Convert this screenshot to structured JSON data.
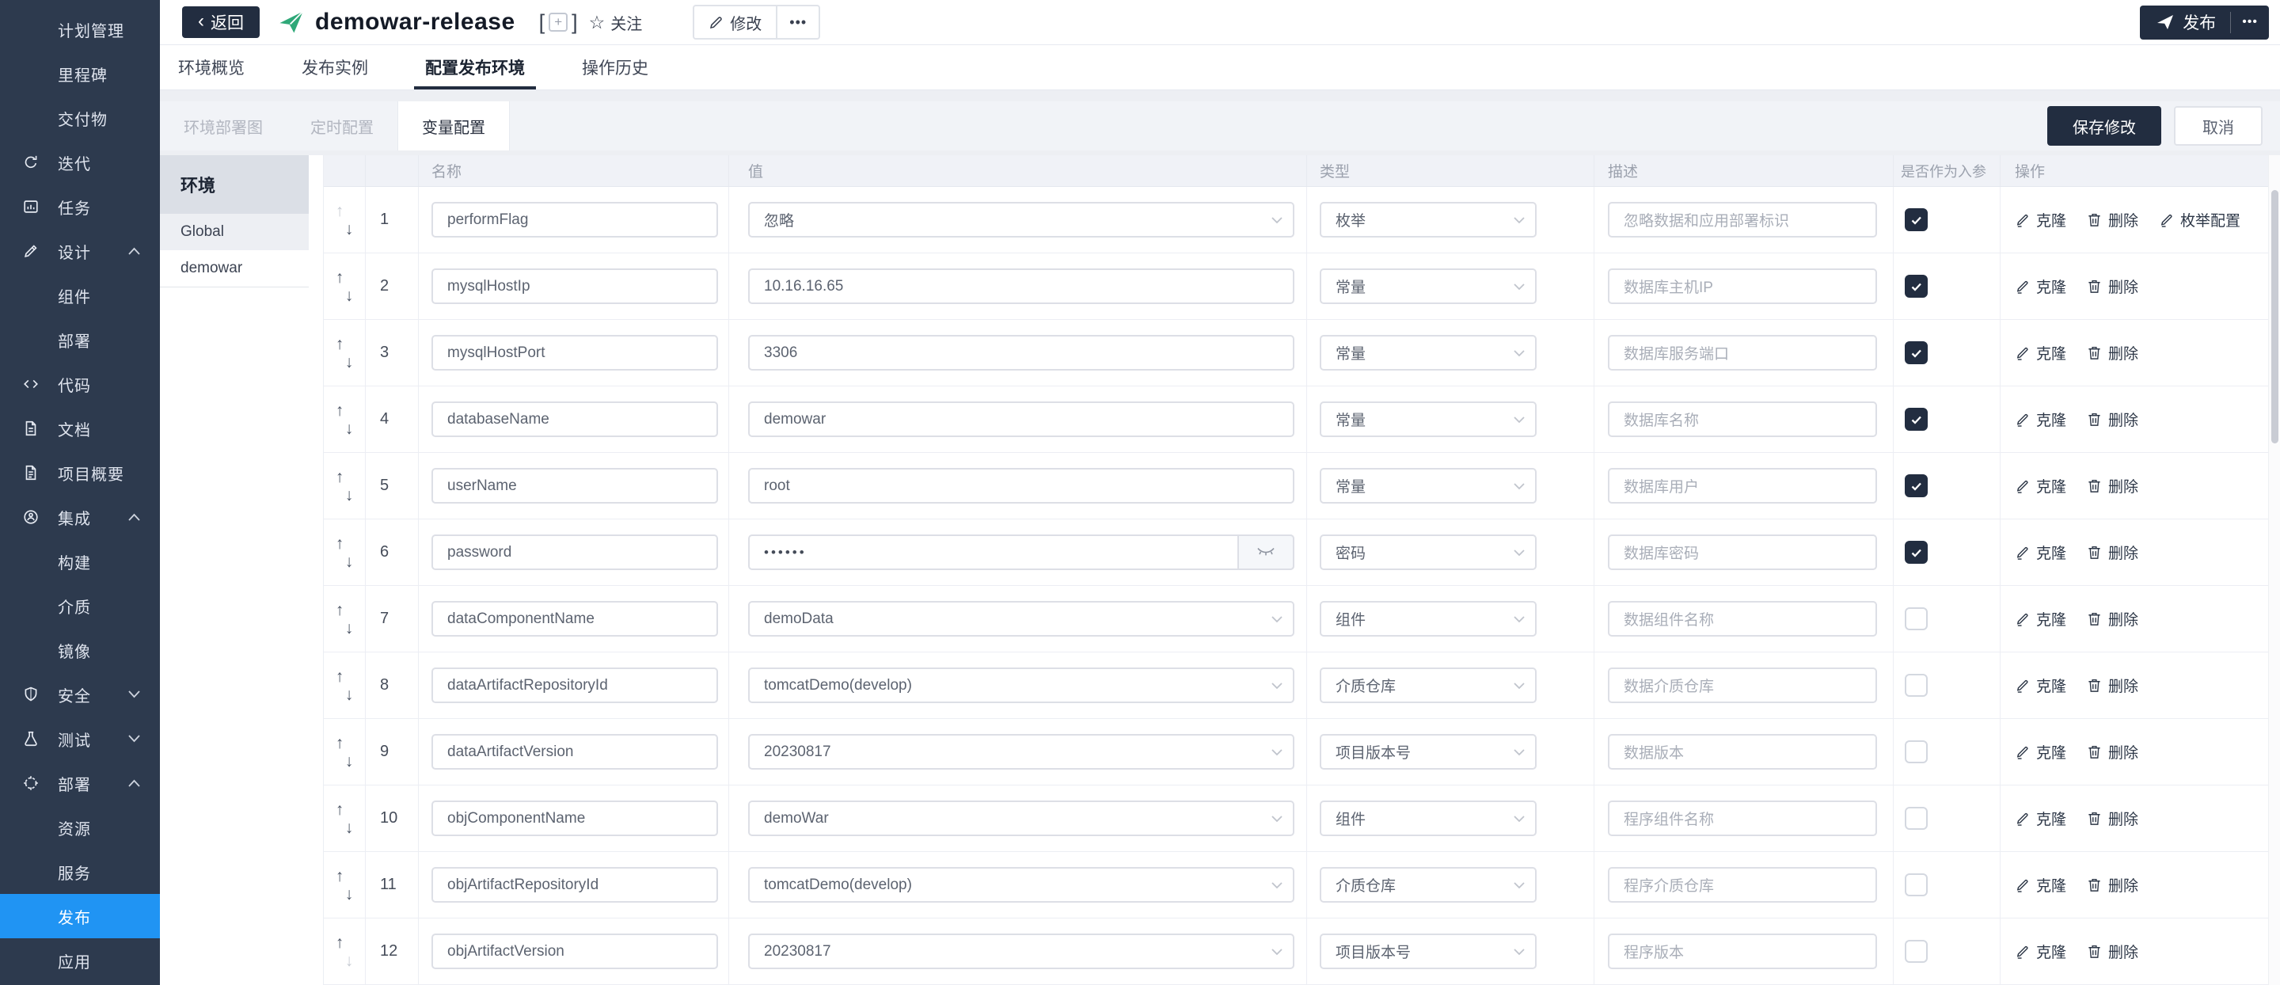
{
  "colors": {
    "accent": "#2094f3",
    "dark": "#222d40",
    "brand_green": "#2fa878"
  },
  "sidebar": {
    "items": [
      {
        "label": "计划管理",
        "child": true
      },
      {
        "label": "里程碑",
        "child": true
      },
      {
        "label": "交付物",
        "child": true
      },
      {
        "label": "迭代",
        "icon": "iteration"
      },
      {
        "label": "任务",
        "icon": "tasks"
      },
      {
        "label": "设计",
        "icon": "design",
        "arrow": "up"
      },
      {
        "label": "组件",
        "child": true
      },
      {
        "label": "部署",
        "child": true
      },
      {
        "label": "代码",
        "icon": "code"
      },
      {
        "label": "文档",
        "icon": "document"
      },
      {
        "label": "项目概要",
        "icon": "overview"
      },
      {
        "label": "集成",
        "icon": "integration",
        "arrow": "up"
      },
      {
        "label": "构建",
        "child": true
      },
      {
        "label": "介质",
        "child": true
      },
      {
        "label": "镜像",
        "child": true
      },
      {
        "label": "安全",
        "icon": "security",
        "arrow": "down"
      },
      {
        "label": "测试",
        "icon": "test",
        "arrow": "down"
      },
      {
        "label": "部署",
        "icon": "deploy",
        "arrow": "up"
      },
      {
        "label": "资源",
        "child": true
      },
      {
        "label": "服务",
        "child": true
      },
      {
        "label": "发布",
        "child": true,
        "active": true
      },
      {
        "label": "应用",
        "child": true
      }
    ]
  },
  "header": {
    "back": "返回",
    "title": "demowar-release",
    "bracket_left": "[",
    "bracket_right": "]",
    "plus": "+",
    "follow": "关注",
    "edit": "修改",
    "more": "•••",
    "publish": "发布",
    "publish_more": "•••"
  },
  "tabs": [
    {
      "label": "环境概览"
    },
    {
      "label": "发布实例"
    },
    {
      "label": "配置发布环境",
      "active": true
    },
    {
      "label": "操作历史"
    }
  ],
  "subtabs": [
    {
      "label": "环境部署图"
    },
    {
      "label": "定时配置"
    },
    {
      "label": "变量配置",
      "active": true
    }
  ],
  "actions": {
    "save": "保存修改",
    "cancel": "取消"
  },
  "env_panel": {
    "title": "环境",
    "items": [
      {
        "label": "Global",
        "selected": true
      },
      {
        "label": "demowar"
      }
    ]
  },
  "table": {
    "columns": [
      "名称",
      "值",
      "类型",
      "描述",
      "是否作为入参",
      "操作"
    ],
    "op_labels": {
      "clone": "克隆",
      "delete": "删除",
      "enum_config": "枚举配置"
    },
    "rows": [
      {
        "num": "1",
        "name": "performFlag",
        "value": "忽略",
        "value_kind": "select",
        "type": "枚举",
        "desc": "忽略数据和应用部署标识",
        "as_param": true,
        "has_enum": true
      },
      {
        "num": "2",
        "name": "mysqlHostIp",
        "value": "10.16.16.65",
        "value_kind": "text",
        "type": "常量",
        "desc": "数据库主机IP",
        "as_param": true,
        "has_enum": false
      },
      {
        "num": "3",
        "name": "mysqlHostPort",
        "value": "3306",
        "value_kind": "text",
        "type": "常量",
        "desc": "数据库服务端口",
        "as_param": true,
        "has_enum": false
      },
      {
        "num": "4",
        "name": "databaseName",
        "value": "demowar",
        "value_kind": "text",
        "type": "常量",
        "desc": "数据库名称",
        "as_param": true,
        "has_enum": false
      },
      {
        "num": "5",
        "name": "userName",
        "value": "root",
        "value_kind": "text",
        "type": "常量",
        "desc": "数据库用户",
        "as_param": true,
        "has_enum": false
      },
      {
        "num": "6",
        "name": "password",
        "value": "••••••",
        "value_kind": "password",
        "type": "密码",
        "desc": "数据库密码",
        "as_param": true,
        "has_enum": false
      },
      {
        "num": "7",
        "name": "dataComponentName",
        "value": "demoData",
        "value_kind": "select",
        "type": "组件",
        "desc": "数据组件名称",
        "as_param": false,
        "has_enum": false
      },
      {
        "num": "8",
        "name": "dataArtifactRepositoryId",
        "value": "tomcatDemo(develop)",
        "value_kind": "select",
        "type": "介质仓库",
        "desc": "数据介质仓库",
        "as_param": false,
        "has_enum": false
      },
      {
        "num": "9",
        "name": "dataArtifactVersion",
        "value": "20230817",
        "value_kind": "select",
        "type": "项目版本号",
        "desc": "数据版本",
        "as_param": false,
        "has_enum": false
      },
      {
        "num": "10",
        "name": "objComponentName",
        "value": "demoWar",
        "value_kind": "select",
        "type": "组件",
        "desc": "程序组件名称",
        "as_param": false,
        "has_enum": false
      },
      {
        "num": "11",
        "name": "objArtifactRepositoryId",
        "value": "tomcatDemo(develop)",
        "value_kind": "select",
        "type": "介质仓库",
        "desc": "程序介质仓库",
        "as_param": false,
        "has_enum": false
      },
      {
        "num": "12",
        "name": "objArtifactVersion",
        "value": "20230817",
        "value_kind": "select",
        "type": "项目版本号",
        "desc": "程序版本",
        "as_param": false,
        "has_enum": false
      }
    ]
  }
}
